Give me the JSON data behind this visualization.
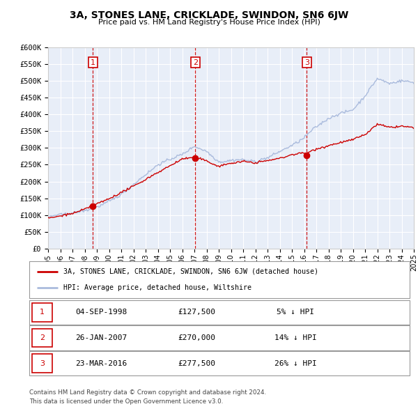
{
  "title": "3A, STONES LANE, CRICKLADE, SWINDON, SN6 6JW",
  "subtitle": "Price paid vs. HM Land Registry's House Price Index (HPI)",
  "plot_bg_color": "#e8eef8",
  "grid_color": "#ffffff",
  "sale_color": "#cc0000",
  "hpi_color": "#aabbdd",
  "vline_color": "#cc0000",
  "sale_label": "3A, STONES LANE, CRICKLADE, SWINDON, SN6 6JW (detached house)",
  "hpi_label": "HPI: Average price, detached house, Wiltshire",
  "purchases": [
    {
      "num": 1,
      "date": "04-SEP-1998",
      "price": 127500,
      "pct": "5%",
      "year": 1998.67
    },
    {
      "num": 2,
      "date": "26-JAN-2007",
      "price": 270000,
      "pct": "14%",
      "year": 2007.07
    },
    {
      "num": 3,
      "date": "23-MAR-2016",
      "price": 277500,
      "pct": "26%",
      "year": 2016.22
    }
  ],
  "footer1": "Contains HM Land Registry data © Crown copyright and database right 2024.",
  "footer2": "This data is licensed under the Open Government Licence v3.0.",
  "y_ticks": [
    0,
    50000,
    100000,
    150000,
    200000,
    250000,
    300000,
    350000,
    400000,
    450000,
    500000,
    550000,
    600000
  ],
  "y_tick_labels": [
    "£0",
    "£50K",
    "£100K",
    "£150K",
    "£200K",
    "£250K",
    "£300K",
    "£350K",
    "£400K",
    "£450K",
    "£500K",
    "£550K",
    "£600K"
  ]
}
